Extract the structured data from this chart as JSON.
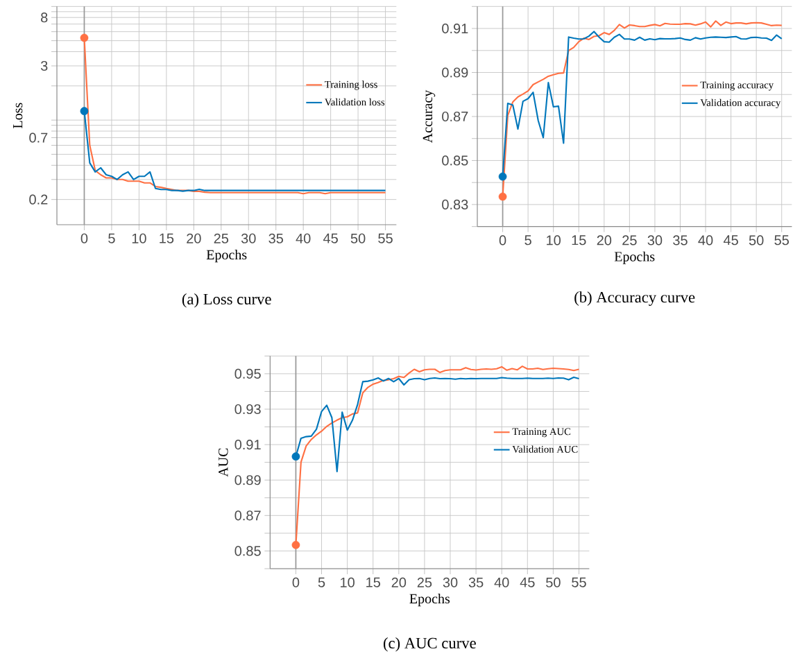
{
  "chart_data": [
    {
      "type": "line",
      "title": "(a) Loss curve",
      "xlabel": "Epochs",
      "ylabel": "Loss",
      "log": true,
      "grid": true,
      "legend": "right",
      "xlim": [
        -5,
        57
      ],
      "xticks": [
        0,
        5,
        10,
        15,
        20,
        25,
        30,
        35,
        40,
        45,
        50,
        55
      ],
      "ylim": [
        0.12,
        10
      ],
      "yticks": [
        0.2,
        0.7,
        3,
        8
      ],
      "ref_lines": [
        {
          "axis": "x",
          "value": 0,
          "color": "#999999"
        }
      ],
      "x": [
        0,
        1,
        2,
        3,
        4,
        5,
        6,
        7,
        8,
        9,
        10,
        11,
        12,
        13,
        14,
        15,
        16,
        17,
        18,
        19,
        20,
        21,
        22,
        23,
        24,
        25,
        26,
        27,
        28,
        29,
        30,
        31,
        32,
        33,
        34,
        35,
        36,
        37,
        38,
        39,
        40,
        41,
        42,
        43,
        44,
        45,
        46,
        47,
        48,
        49,
        50,
        51,
        52,
        53,
        54,
        55
      ],
      "series": [
        {
          "name": "Training loss",
          "color": "#ff7043",
          "values": [
            5.3,
            0.6,
            0.36,
            0.33,
            0.31,
            0.31,
            0.3,
            0.3,
            0.29,
            0.29,
            0.29,
            0.28,
            0.28,
            0.26,
            0.256,
            0.25,
            0.245,
            0.24,
            0.24,
            0.24,
            0.236,
            0.236,
            0.232,
            0.23,
            0.23,
            0.23,
            0.23,
            0.23,
            0.23,
            0.23,
            0.23,
            0.23,
            0.23,
            0.23,
            0.23,
            0.23,
            0.23,
            0.23,
            0.23,
            0.23,
            0.225,
            0.23,
            0.23,
            0.23,
            0.225,
            0.23,
            0.23,
            0.23,
            0.23,
            0.23,
            0.23,
            0.23,
            0.23,
            0.23,
            0.23,
            0.23
          ]
        },
        {
          "name": "Validation loss",
          "color": "#0077bb",
          "values": [
            1.2,
            0.42,
            0.35,
            0.38,
            0.33,
            0.32,
            0.3,
            0.33,
            0.35,
            0.3,
            0.32,
            0.32,
            0.35,
            0.25,
            0.245,
            0.245,
            0.24,
            0.24,
            0.237,
            0.24,
            0.24,
            0.246,
            0.24,
            0.24,
            0.24,
            0.24,
            0.24,
            0.24,
            0.24,
            0.24,
            0.24,
            0.24,
            0.24,
            0.24,
            0.24,
            0.24,
            0.24,
            0.24,
            0.24,
            0.24,
            0.24,
            0.24,
            0.24,
            0.24,
            0.24,
            0.24,
            0.24,
            0.24,
            0.24,
            0.24,
            0.24,
            0.24,
            0.24,
            0.24,
            0.24,
            0.24
          ]
        },
        {
          "type": "scatter",
          "marker": "circle",
          "color": "#ff7043",
          "values": [
            5.3,
            null,
            null,
            null,
            null,
            null,
            null,
            null,
            null,
            null,
            null,
            null,
            null,
            null,
            null,
            null,
            null,
            null,
            null,
            null,
            null,
            null,
            null,
            null,
            null,
            null,
            null,
            null,
            null,
            null,
            null,
            null,
            null,
            null,
            null,
            null,
            null,
            null,
            null,
            null,
            null,
            null,
            null,
            null,
            null,
            null,
            null,
            null,
            null,
            null,
            null,
            null,
            null,
            null,
            null,
            null
          ]
        },
        {
          "type": "scatter",
          "marker": "circle",
          "color": "#0077bb",
          "values": [
            1.2,
            null,
            null,
            null,
            null,
            null,
            null,
            null,
            null,
            null,
            null,
            null,
            null,
            null,
            null,
            null,
            null,
            null,
            null,
            null,
            null,
            null,
            null,
            null,
            null,
            null,
            null,
            null,
            null,
            null,
            null,
            null,
            null,
            null,
            null,
            null,
            null,
            null,
            null,
            null,
            null,
            null,
            null,
            null,
            null,
            null,
            null,
            null,
            null,
            null,
            null,
            null,
            null,
            null,
            null,
            null
          ]
        }
      ]
    },
    {
      "type": "line",
      "title": "(b) Accuracy curve",
      "xlabel": "Epochs",
      "ylabel": "Accuracy",
      "grid": true,
      "legend": "right",
      "xlim": [
        -5,
        57
      ],
      "xticks": [
        0,
        5,
        10,
        15,
        20,
        25,
        30,
        35,
        40,
        45,
        50,
        55
      ],
      "ylim": [
        0.82,
        0.92
      ],
      "yticks": [
        {
          "value": 0.82,
          "label": null
        },
        0.83,
        {
          "value": 0.84,
          "label": null
        },
        0.85,
        {
          "value": 0.86,
          "label": null
        },
        0.87,
        {
          "value": 0.88,
          "label": null
        },
        0.89,
        {
          "value": 0.9,
          "label": null
        },
        0.91,
        {
          "value": 0.92,
          "label": null
        }
      ],
      "ref_lines": [
        {
          "axis": "x",
          "value": 0,
          "color": "#999999"
        }
      ],
      "x": [
        0,
        1,
        2,
        3,
        4,
        5,
        6,
        7,
        8,
        9,
        10,
        11,
        12,
        13,
        14,
        15,
        16,
        17,
        18,
        19,
        20,
        21,
        22,
        23,
        24,
        25,
        26,
        27,
        28,
        29,
        30,
        31,
        32,
        33,
        34,
        35,
        36,
        37,
        38,
        39,
        40,
        41,
        42,
        43,
        44,
        45,
        46,
        47,
        48,
        49,
        50,
        51,
        52,
        53,
        54,
        55
      ],
      "series": [
        {
          "name": "Training accuracy",
          "color": "#ff7043",
          "values": [
            0.8336,
            0.8705,
            0.8766,
            0.8789,
            0.8802,
            0.8816,
            0.8845,
            0.8857,
            0.8869,
            0.8883,
            0.889,
            0.8896,
            0.8898,
            0.9,
            0.9014,
            0.904,
            0.9056,
            0.905,
            0.9064,
            0.9067,
            0.9081,
            0.9073,
            0.9091,
            0.9118,
            0.9102,
            0.9116,
            0.9113,
            0.9109,
            0.9109,
            0.9114,
            0.9118,
            0.9112,
            0.9123,
            0.912,
            0.9119,
            0.9119,
            0.9122,
            0.9121,
            0.9115,
            0.9121,
            0.9129,
            0.9107,
            0.9134,
            0.9114,
            0.9129,
            0.9122,
            0.9125,
            0.9125,
            0.9121,
            0.9125,
            0.9126,
            0.9125,
            0.9119,
            0.9113,
            0.9115,
            0.9114
          ]
        },
        {
          "name": "Validation accuracy",
          "color": "#0077bb",
          "values": [
            0.8427,
            0.876,
            0.8752,
            0.8643,
            0.8769,
            0.8781,
            0.881,
            0.8682,
            0.8604,
            0.8854,
            0.8744,
            0.8747,
            0.8579,
            0.9061,
            0.9056,
            0.9052,
            0.9053,
            0.9065,
            0.9086,
            0.9061,
            0.904,
            0.9038,
            0.906,
            0.9073,
            0.9052,
            0.9052,
            0.9047,
            0.906,
            0.9047,
            0.9053,
            0.9049,
            0.9054,
            0.9053,
            0.9053,
            0.9054,
            0.9057,
            0.905,
            0.9047,
            0.9058,
            0.9052,
            0.9057,
            0.906,
            0.9061,
            0.906,
            0.9059,
            0.9061,
            0.9063,
            0.9053,
            0.9052,
            0.9059,
            0.906,
            0.9057,
            0.9056,
            0.9046,
            0.907,
            0.9053
          ]
        },
        {
          "type": "scatter",
          "marker": "circle",
          "color": "#ff7043",
          "values": [
            0.8336,
            null,
            null,
            null,
            null,
            null,
            null,
            null,
            null,
            null,
            null,
            null,
            null,
            null,
            null,
            null,
            null,
            null,
            null,
            null,
            null,
            null,
            null,
            null,
            null,
            null,
            null,
            null,
            null,
            null,
            null,
            null,
            null,
            null,
            null,
            null,
            null,
            null,
            null,
            null,
            null,
            null,
            null,
            null,
            null,
            null,
            null,
            null,
            null,
            null,
            null,
            null,
            null,
            null,
            null,
            null
          ]
        },
        {
          "type": "scatter",
          "marker": "circle",
          "color": "#0077bb",
          "values": [
            0.8427,
            null,
            null,
            null,
            null,
            null,
            null,
            null,
            null,
            null,
            null,
            null,
            null,
            null,
            null,
            null,
            null,
            null,
            null,
            null,
            null,
            null,
            null,
            null,
            null,
            null,
            null,
            null,
            null,
            null,
            null,
            null,
            null,
            null,
            null,
            null,
            null,
            null,
            null,
            null,
            null,
            null,
            null,
            null,
            null,
            null,
            null,
            null,
            null,
            null,
            null,
            null,
            null,
            null,
            null,
            null
          ]
        }
      ]
    },
    {
      "type": "line",
      "title": "(c) AUC curve",
      "xlabel": "Epochs",
      "ylabel": "AUC",
      "grid": true,
      "legend": "right",
      "xlim": [
        -5,
        57
      ],
      "xticks": [
        0,
        5,
        10,
        15,
        20,
        25,
        30,
        35,
        40,
        45,
        50,
        55
      ],
      "ylim": [
        0.84,
        0.96
      ],
      "yticks": [
        {
          "value": 0.84,
          "label": null
        },
        0.85,
        {
          "value": 0.86,
          "label": null
        },
        0.87,
        {
          "value": 0.88,
          "label": null
        },
        0.89,
        {
          "value": 0.9,
          "label": null
        },
        0.91,
        {
          "value": 0.92,
          "label": null
        },
        0.93,
        {
          "value": 0.94,
          "label": null
        },
        0.95,
        {
          "value": 0.96,
          "label": null
        }
      ],
      "ref_lines": [
        {
          "axis": "x",
          "value": 0,
          "color": "#999999"
        }
      ],
      "x": [
        0,
        1,
        2,
        3,
        4,
        5,
        6,
        7,
        8,
        9,
        10,
        11,
        12,
        13,
        14,
        15,
        16,
        17,
        18,
        19,
        20,
        21,
        22,
        23,
        24,
        25,
        26,
        27,
        28,
        29,
        30,
        31,
        32,
        33,
        34,
        35,
        36,
        37,
        38,
        39,
        40,
        41,
        42,
        43,
        44,
        45,
        46,
        47,
        48,
        49,
        50,
        51,
        52,
        53,
        54,
        55
      ],
      "series": [
        {
          "name": "Training AUC",
          "color": "#ff7043",
          "values": [
            0.8534,
            0.9001,
            0.9092,
            0.9129,
            0.9155,
            0.9176,
            0.9203,
            0.9222,
            0.9238,
            0.9252,
            0.9257,
            0.9273,
            0.9279,
            0.9392,
            0.9423,
            0.9441,
            0.9451,
            0.9462,
            0.9466,
            0.9472,
            0.9485,
            0.9479,
            0.9504,
            0.9525,
            0.9511,
            0.9522,
            0.9525,
            0.9525,
            0.9507,
            0.9518,
            0.9522,
            0.9522,
            0.9522,
            0.9534,
            0.9524,
            0.9521,
            0.9525,
            0.9527,
            0.9525,
            0.9528,
            0.9539,
            0.952,
            0.9529,
            0.9522,
            0.9542,
            0.9527,
            0.9527,
            0.9531,
            0.9524,
            0.9528,
            0.9531,
            0.9529,
            0.9527,
            0.9524,
            0.9518,
            0.9525
          ]
        },
        {
          "name": "Validation AUC",
          "color": "#0077bb",
          "values": [
            0.9033,
            0.9136,
            0.9145,
            0.9148,
            0.9187,
            0.9287,
            0.9322,
            0.9252,
            0.8948,
            0.9283,
            0.9182,
            0.9238,
            0.9327,
            0.9455,
            0.9458,
            0.9465,
            0.9476,
            0.9459,
            0.9473,
            0.9455,
            0.9473,
            0.9437,
            0.9466,
            0.9472,
            0.9473,
            0.9466,
            0.9473,
            0.9476,
            0.9472,
            0.9473,
            0.9472,
            0.9469,
            0.9473,
            0.9471,
            0.9473,
            0.9472,
            0.9473,
            0.9473,
            0.9473,
            0.9473,
            0.9478,
            0.9475,
            0.9473,
            0.9473,
            0.9473,
            0.9475,
            0.9473,
            0.9473,
            0.9473,
            0.9475,
            0.9473,
            0.9476,
            0.9475,
            0.9466,
            0.948,
            0.9472
          ]
        },
        {
          "type": "scatter",
          "marker": "circle",
          "color": "#ff7043",
          "values": [
            0.8534,
            null,
            null,
            null,
            null,
            null,
            null,
            null,
            null,
            null,
            null,
            null,
            null,
            null,
            null,
            null,
            null,
            null,
            null,
            null,
            null,
            null,
            null,
            null,
            null,
            null,
            null,
            null,
            null,
            null,
            null,
            null,
            null,
            null,
            null,
            null,
            null,
            null,
            null,
            null,
            null,
            null,
            null,
            null,
            null,
            null,
            null,
            null,
            null,
            null,
            null,
            null,
            null,
            null,
            null,
            null
          ]
        },
        {
          "type": "scatter",
          "marker": "circle",
          "color": "#0077bb",
          "values": [
            0.9033,
            null,
            null,
            null,
            null,
            null,
            null,
            null,
            null,
            null,
            null,
            null,
            null,
            null,
            null,
            null,
            null,
            null,
            null,
            null,
            null,
            null,
            null,
            null,
            null,
            null,
            null,
            null,
            null,
            null,
            null,
            null,
            null,
            null,
            null,
            null,
            null,
            null,
            null,
            null,
            null,
            null,
            null,
            null,
            null,
            null,
            null,
            null,
            null,
            null,
            null,
            null,
            null,
            null,
            null,
            null
          ]
        }
      ]
    }
  ]
}
